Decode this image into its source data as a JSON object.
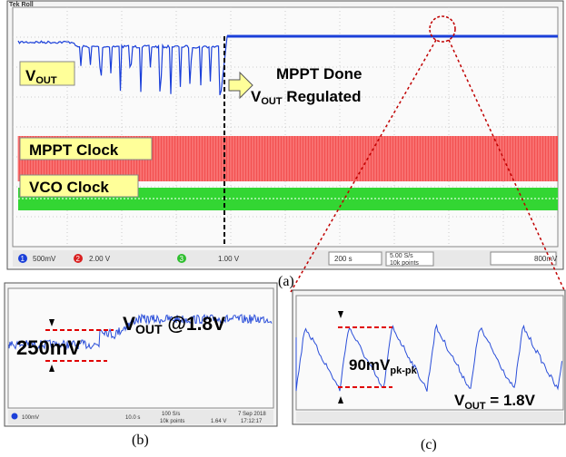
{
  "header": {
    "scope_mode": "Tek Roll"
  },
  "panel_a": {
    "vout_label": {
      "main": "V",
      "sub": "OUT"
    },
    "annotation": {
      "line1": "MPPT Done",
      "line2": {
        "main": "V",
        "sub": "OUT",
        "rest": " Regulated"
      }
    },
    "mppt_clock": "MPPT Clock",
    "vco_clock": "VCO Clock",
    "footer": {
      "channels": [
        "1",
        "2",
        "3"
      ],
      "ch1": "500mV",
      "ch2": "2.00 V",
      "ch3": "1.00 V",
      "timebase": "200 s",
      "rate": "5.00 S/s",
      "points": "10k points",
      "trigger": "800mV"
    },
    "caption": "(a)"
  },
  "panel_b": {
    "label": {
      "main": "V",
      "sub": "OUT",
      "rest": " @1.8V"
    },
    "ripple": "250mV",
    "footer": {
      "ch1": "100mV",
      "timebase": "10.0 s",
      "rate": "100 S/s",
      "points": "10k points",
      "level": "1.64 V",
      "date": "7 Sep 2018",
      "time": "17:12:17"
    },
    "caption": "(b)"
  },
  "panel_c": {
    "ripple": {
      "main": "90mV",
      "sub": "pk-pk"
    },
    "label": {
      "main": "V",
      "sub": "OUT",
      "rest": " = 1.8V"
    },
    "caption": "(c)"
  }
}
